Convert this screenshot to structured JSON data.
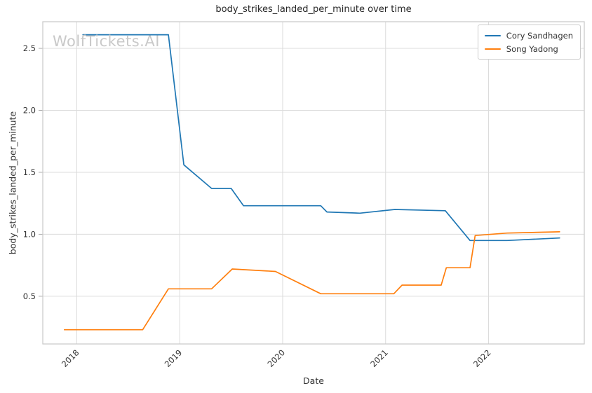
{
  "chart_data": {
    "type": "line",
    "title": "body_strikes_landed_per_minute over time",
    "xlabel": "Date",
    "ylabel": "body_strikes_landed_per_minute",
    "watermark": "WolfTickets.AI",
    "grid": true,
    "legend_position": "upper-right",
    "style": {
      "grid_color": "#dcdcdc",
      "axes_border_color": "#cccccc",
      "tick_mark_color": "#aaaaaa",
      "tick_label_color": "#333333",
      "watermark_color": "#c9c9c9",
      "background": "#ffffff"
    },
    "x_range": [
      2017.67,
      2022.93
    ],
    "y_range": [
      0.115,
      2.715
    ],
    "x_ticks": [
      {
        "value": 2018,
        "label": "2018"
      },
      {
        "value": 2019,
        "label": "2019"
      },
      {
        "value": 2020,
        "label": "2020"
      },
      {
        "value": 2021,
        "label": "2021"
      },
      {
        "value": 2022,
        "label": "2022"
      }
    ],
    "y_ticks": [
      {
        "value": 0.5,
        "label": "0.5"
      },
      {
        "value": 1.0,
        "label": "1.0"
      },
      {
        "value": 1.5,
        "label": "1.5"
      },
      {
        "value": 2.0,
        "label": "2.0"
      },
      {
        "value": 2.5,
        "label": "2.5"
      }
    ],
    "series": [
      {
        "name": "Cory Sandhagen",
        "color": "#1f77b4",
        "points": [
          [
            2018.06,
            2.61
          ],
          [
            2018.89,
            2.61
          ],
          [
            2019.04,
            1.56
          ],
          [
            2019.31,
            1.37
          ],
          [
            2019.5,
            1.37
          ],
          [
            2019.62,
            1.23
          ],
          [
            2020.37,
            1.23
          ],
          [
            2020.43,
            1.18
          ],
          [
            2020.75,
            1.17
          ],
          [
            2021.09,
            1.2
          ],
          [
            2021.58,
            1.19
          ],
          [
            2021.82,
            0.95
          ],
          [
            2022.18,
            0.95
          ],
          [
            2022.69,
            0.97
          ]
        ]
      },
      {
        "name": "Song Yadong",
        "color": "#ff7f0e",
        "points": [
          [
            2017.88,
            0.23
          ],
          [
            2018.64,
            0.23
          ],
          [
            2018.89,
            0.56
          ],
          [
            2019.31,
            0.56
          ],
          [
            2019.51,
            0.72
          ],
          [
            2019.93,
            0.7
          ],
          [
            2020.37,
            0.52
          ],
          [
            2021.08,
            0.52
          ],
          [
            2021.16,
            0.59
          ],
          [
            2021.54,
            0.59
          ],
          [
            2021.59,
            0.73
          ],
          [
            2021.82,
            0.73
          ],
          [
            2021.87,
            0.99
          ],
          [
            2022.18,
            1.01
          ],
          [
            2022.69,
            1.02
          ]
        ]
      }
    ]
  }
}
